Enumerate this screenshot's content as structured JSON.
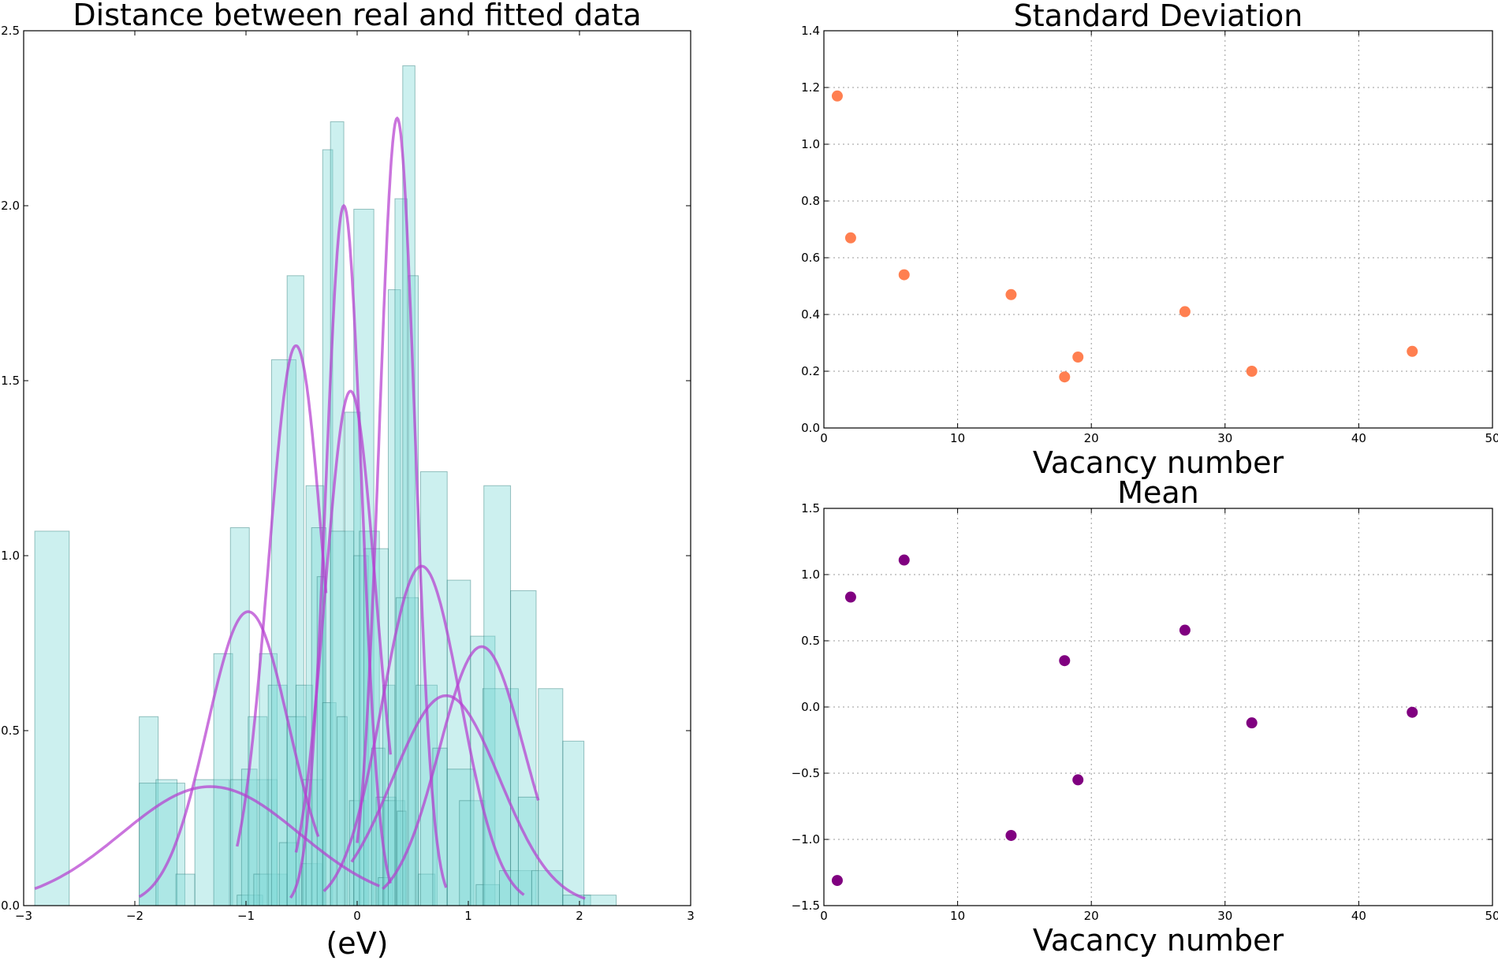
{
  "colors": {
    "hist_fill": "#7fd9d6",
    "hist_edge": "#2a7a78",
    "gauss": "#b53fd0",
    "std_points": "#ff7f50",
    "mean_points": "#800080"
  },
  "chart_data": [
    {
      "type": "bar",
      "title": "Distance between real and fitted data",
      "xlabel": "(eV)",
      "ylabel": "",
      "xlim": [
        -3,
        3
      ],
      "ylim": [
        0,
        2.5
      ],
      "xticks": [
        -3,
        -2,
        -1,
        0,
        1,
        2,
        3
      ],
      "xtick_labels": [
        "−3",
        "−2",
        "−1",
        "0",
        "1",
        "2",
        "3"
      ],
      "yticks": [
        0,
        0.5,
        1.0,
        1.5,
        2.0,
        2.5
      ],
      "ytick_labels": [
        "0.0",
        "0.5",
        "1.0",
        "1.5",
        "2.0",
        "2.5"
      ],
      "bars": [
        {
          "x0": -2.9,
          "x1": -2.59,
          "h": 1.07
        },
        {
          "x0": -1.96,
          "x1": -1.79,
          "h": 0.54
        },
        {
          "x0": -1.96,
          "x1": -1.55,
          "h": 0.35
        },
        {
          "x0": -1.81,
          "x1": -1.62,
          "h": 0.36
        },
        {
          "x0": -1.63,
          "x1": -1.46,
          "h": 0.09
        },
        {
          "x0": -1.46,
          "x1": -1.15,
          "h": 0.36
        },
        {
          "x0": -1.29,
          "x1": -1.12,
          "h": 0.72
        },
        {
          "x0": -1.14,
          "x1": -0.97,
          "h": 1.08
        },
        {
          "x0": -1.14,
          "x1": -0.72,
          "h": 0.36
        },
        {
          "x0": -1.08,
          "x1": -0.85,
          "h": 0.03
        },
        {
          "x0": -1.04,
          "x1": -0.9,
          "h": 0.39
        },
        {
          "x0": -0.98,
          "x1": -0.81,
          "h": 0.54
        },
        {
          "x0": -0.93,
          "x1": -0.63,
          "h": 0.09
        },
        {
          "x0": -0.88,
          "x1": -0.72,
          "h": 0.72
        },
        {
          "x0": -0.8,
          "x1": -0.63,
          "h": 0.63
        },
        {
          "x0": -0.77,
          "x1": -0.55,
          "h": 1.56
        },
        {
          "x0": -0.7,
          "x1": -0.52,
          "h": 0.18
        },
        {
          "x0": -0.63,
          "x1": -0.48,
          "h": 1.8
        },
        {
          "x0": -0.63,
          "x1": -0.46,
          "h": 0.54
        },
        {
          "x0": -0.55,
          "x1": -0.4,
          "h": 0.63
        },
        {
          "x0": -0.5,
          "x1": -0.32,
          "h": 0.12
        },
        {
          "x0": -0.49,
          "x1": -0.31,
          "h": 0.36
        },
        {
          "x0": -0.46,
          "x1": -0.3,
          "h": 1.2
        },
        {
          "x0": -0.41,
          "x1": -0.28,
          "h": 1.08
        },
        {
          "x0": -0.36,
          "x1": -0.29,
          "h": 0.94
        },
        {
          "x0": -0.31,
          "x1": -0.22,
          "h": 2.16
        },
        {
          "x0": -0.31,
          "x1": -0.19,
          "h": 0.58
        },
        {
          "x0": -0.24,
          "x1": -0.12,
          "h": 2.24
        },
        {
          "x0": -0.24,
          "x1": -0.03,
          "h": 1.07
        },
        {
          "x0": -0.18,
          "x1": -0.09,
          "h": 0.54
        },
        {
          "x0": -0.11,
          "x1": 0.03,
          "h": 1.41
        },
        {
          "x0": -0.07,
          "x1": 0.08,
          "h": 0.3
        },
        {
          "x0": -0.03,
          "x1": 0.15,
          "h": 1.99
        },
        {
          "x0": -0.03,
          "x1": 0.1,
          "h": 1.0
        },
        {
          "x0": 0.02,
          "x1": 0.2,
          "h": 1.07
        },
        {
          "x0": 0.06,
          "x1": 0.28,
          "h": 1.02
        },
        {
          "x0": 0.13,
          "x1": 0.25,
          "h": 0.45
        },
        {
          "x0": 0.17,
          "x1": 0.35,
          "h": 0.31
        },
        {
          "x0": 0.19,
          "x1": 0.32,
          "h": 0.08
        },
        {
          "x0": 0.23,
          "x1": 0.34,
          "h": 0.63
        },
        {
          "x0": 0.24,
          "x1": 0.43,
          "h": 0.3
        },
        {
          "x0": 0.28,
          "x1": 0.39,
          "h": 1.76
        },
        {
          "x0": 0.34,
          "x1": 0.45,
          "h": 2.02
        },
        {
          "x0": 0.35,
          "x1": 0.55,
          "h": 0.88
        },
        {
          "x0": 0.36,
          "x1": 0.44,
          "h": 0.27
        },
        {
          "x0": 0.41,
          "x1": 0.52,
          "h": 2.4
        },
        {
          "x0": 0.46,
          "x1": 0.55,
          "h": 1.8
        },
        {
          "x0": 0.53,
          "x1": 0.72,
          "h": 0.63
        },
        {
          "x0": 0.55,
          "x1": 0.7,
          "h": 0.09
        },
        {
          "x0": 0.57,
          "x1": 0.81,
          "h": 1.24
        },
        {
          "x0": 0.68,
          "x1": 0.81,
          "h": 0.45
        },
        {
          "x0": 0.81,
          "x1": 1.02,
          "h": 0.93
        },
        {
          "x0": 0.81,
          "x1": 1.05,
          "h": 0.39
        },
        {
          "x0": 0.92,
          "x1": 1.15,
          "h": 0.3
        },
        {
          "x0": 1.02,
          "x1": 1.24,
          "h": 0.77
        },
        {
          "x0": 1.07,
          "x1": 1.28,
          "h": 0.06
        },
        {
          "x0": 1.13,
          "x1": 1.45,
          "h": 0.62
        },
        {
          "x0": 1.14,
          "x1": 1.38,
          "h": 1.2
        },
        {
          "x0": 1.28,
          "x1": 1.57,
          "h": 0.1
        },
        {
          "x0": 1.38,
          "x1": 1.61,
          "h": 0.9
        },
        {
          "x0": 1.45,
          "x1": 1.63,
          "h": 0.31
        },
        {
          "x0": 1.57,
          "x1": 1.85,
          "h": 0.1
        },
        {
          "x0": 1.63,
          "x1": 1.85,
          "h": 0.62
        },
        {
          "x0": 1.85,
          "x1": 2.04,
          "h": 0.47
        },
        {
          "x0": 1.85,
          "x1": 2.1,
          "h": 0.03
        },
        {
          "x0": 2.04,
          "x1": 2.33,
          "h": 0.03
        }
      ],
      "gaussians": [
        {
          "mu": -1.32,
          "sigma": 0.8,
          "amp": 0.34,
          "xmin": -2.9,
          "xmax": 0.2
        },
        {
          "mu": -0.98,
          "sigma": 0.37,
          "amp": 0.84,
          "xmin": -1.96,
          "xmax": -0.35
        },
        {
          "mu": -0.55,
          "sigma": 0.25,
          "amp": 1.6,
          "xmin": -1.08,
          "xmax": -0.28
        },
        {
          "mu": -0.12,
          "sigma": 0.16,
          "amp": 2.0,
          "xmin": -0.6,
          "xmax": 0.3
        },
        {
          "mu": -0.06,
          "sigma": 0.23,
          "amp": 1.47,
          "xmin": -0.55,
          "xmax": 0.3
        },
        {
          "mu": 0.36,
          "sigma": 0.16,
          "amp": 2.25,
          "xmin": 0.0,
          "xmax": 0.8
        },
        {
          "mu": 0.58,
          "sigma": 0.35,
          "amp": 0.97,
          "xmin": -0.3,
          "xmax": 1.5
        },
        {
          "mu": 0.8,
          "sigma": 0.48,
          "amp": 0.6,
          "xmin": -0.05,
          "xmax": 2.05
        },
        {
          "mu": 1.12,
          "sigma": 0.38,
          "amp": 0.74,
          "xmin": 0.23,
          "xmax": 1.63
        }
      ]
    },
    {
      "type": "scatter",
      "title": "Standard Deviation",
      "xlabel": "Vacancy number",
      "ylabel": "",
      "xlim": [
        0,
        50
      ],
      "ylim": [
        0,
        1.4
      ],
      "grid": true,
      "xticks": [
        0,
        10,
        20,
        30,
        40,
        50
      ],
      "xtick_labels": [
        "0",
        "10",
        "20",
        "30",
        "40",
        "50"
      ],
      "yticks": [
        0,
        0.2,
        0.4,
        0.6,
        0.8,
        1.0,
        1.2,
        1.4
      ],
      "ytick_labels": [
        "0.0",
        "0.2",
        "0.4",
        "0.6",
        "0.8",
        "1.0",
        "1.2",
        "1.4"
      ],
      "x": [
        1,
        2,
        6,
        14,
        18,
        19,
        27,
        32,
        44
      ],
      "y": [
        1.17,
        0.67,
        0.54,
        0.47,
        0.18,
        0.25,
        0.41,
        0.2,
        0.27
      ]
    },
    {
      "type": "scatter",
      "title": "Mean",
      "xlabel": "Vacancy number",
      "ylabel": "",
      "xlim": [
        0,
        50
      ],
      "ylim": [
        -1.5,
        1.5
      ],
      "grid": true,
      "xticks": [
        0,
        10,
        20,
        30,
        40,
        50
      ],
      "xtick_labels": [
        "0",
        "10",
        "20",
        "30",
        "40",
        "50"
      ],
      "yticks": [
        -1.5,
        -1.0,
        -0.5,
        0.0,
        0.5,
        1.0,
        1.5
      ],
      "ytick_labels": [
        "−1.5",
        "−1.0",
        "−0.5",
        "0.0",
        "0.5",
        "1.0",
        "1.5"
      ],
      "x": [
        1,
        2,
        6,
        14,
        18,
        19,
        27,
        32,
        44
      ],
      "y": [
        -1.31,
        0.83,
        1.11,
        -0.97,
        0.35,
        -0.55,
        0.58,
        -0.12,
        -0.04
      ]
    }
  ]
}
